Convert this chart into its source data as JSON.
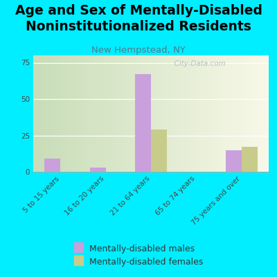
{
  "title": "Age and Sex of Mentally-Disabled\nNoninstitutionalized Residents",
  "subtitle": "New Hempstead, NY",
  "categories": [
    "5 to 15 years",
    "16 to 20 years",
    "21 to 64 years",
    "65 to 74 years",
    "75 years and over"
  ],
  "males": [
    9,
    3,
    67,
    0,
    15
  ],
  "females": [
    0,
    0,
    29,
    0,
    17
  ],
  "male_color": "#c9a0dc",
  "female_color": "#c8cc8a",
  "background_color": "#00eeff",
  "bg_color_left": "#c8ddb8",
  "bg_color_right": "#f8f8e8",
  "ylim": [
    0,
    80
  ],
  "yticks": [
    0,
    25,
    50,
    75
  ],
  "bar_width": 0.35,
  "title_fontsize": 13.5,
  "subtitle_fontsize": 9.5,
  "tick_fontsize": 7.5,
  "legend_fontsize": 9,
  "watermark": "  City-Data.com"
}
